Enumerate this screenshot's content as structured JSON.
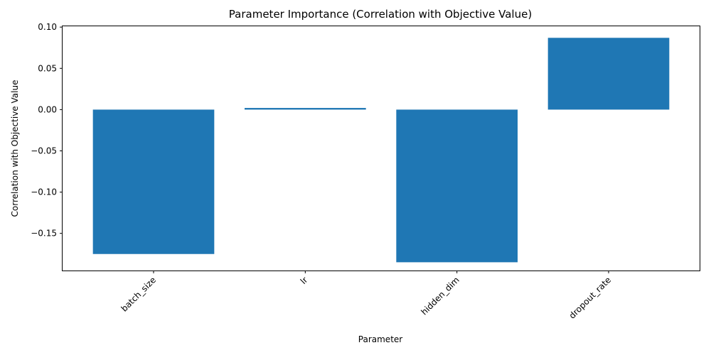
{
  "chart_data": {
    "type": "bar",
    "title": "Parameter Importance (Correlation with Objective Value)",
    "xlabel": "Parameter",
    "ylabel": "Correlation with Objective Value",
    "categories": [
      "batch_size",
      "lr",
      "hidden_dim",
      "dropout_rate"
    ],
    "values": [
      -0.175,
      0.002,
      -0.185,
      0.087
    ],
    "ylim": [
      -0.195,
      0.101
    ],
    "yticks": [
      0.1,
      0.05,
      0.0,
      -0.05,
      -0.1,
      -0.15
    ],
    "ytick_labels": [
      "0.10",
      "0.05",
      "0.00",
      "−0.05",
      "−0.10",
      "−0.15"
    ],
    "bar_color": "#1f77b4",
    "grid": false,
    "xtick_rotation": 45
  }
}
